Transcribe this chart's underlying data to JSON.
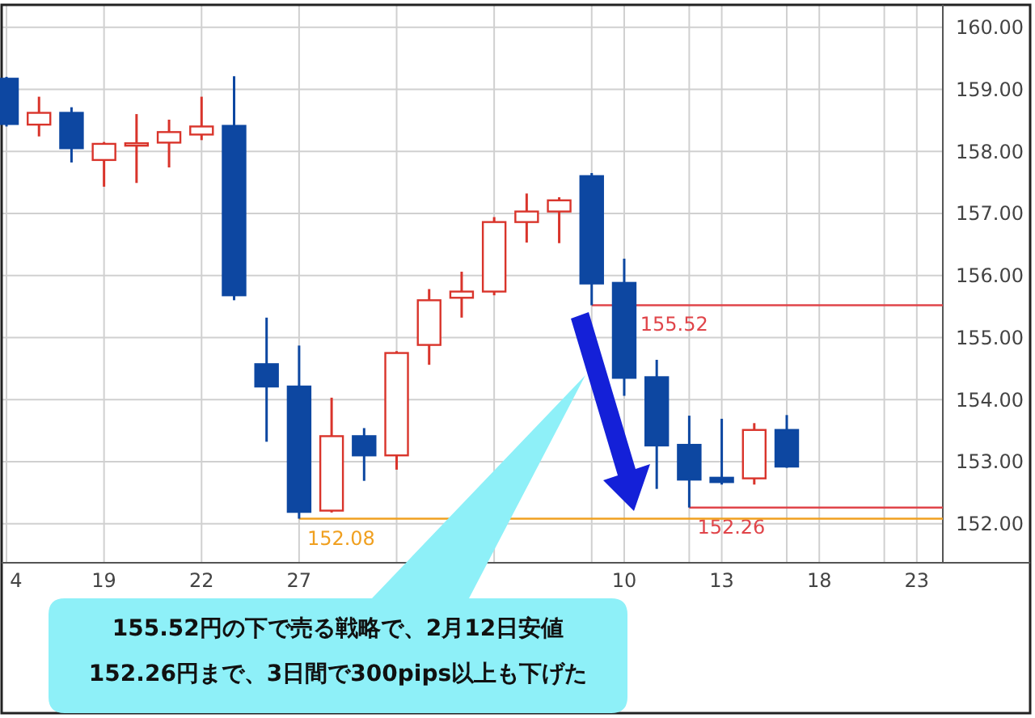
{
  "chart_data": {
    "type": "candlestick",
    "categories": [
      "4",
      null,
      null,
      "19",
      null,
      null,
      "22",
      null,
      null,
      "27",
      null,
      null,
      null,
      null,
      null,
      null,
      null,
      null,
      null,
      "10",
      null,
      null,
      "13",
      null,
      null,
      "18",
      null,
      null,
      "23"
    ],
    "ohlc": [
      [
        159.17,
        159.2,
        158.4,
        158.44
      ],
      [
        158.43,
        158.88,
        158.24,
        158.62
      ],
      [
        158.62,
        158.71,
        157.82,
        158.05
      ],
      [
        157.86,
        158.15,
        157.43,
        158.12
      ],
      [
        158.1,
        158.6,
        157.49,
        158.13
      ],
      [
        158.14,
        158.51,
        157.74,
        158.31
      ],
      [
        158.27,
        158.88,
        158.18,
        158.4
      ],
      [
        158.41,
        159.21,
        155.6,
        155.68
      ],
      [
        154.57,
        155.32,
        153.32,
        154.21
      ],
      [
        154.21,
        154.87,
        152.08,
        152.19
      ],
      [
        152.21,
        154.03,
        152.18,
        153.41
      ],
      [
        153.41,
        153.54,
        152.69,
        153.1
      ],
      [
        153.1,
        154.78,
        152.87,
        154.75
      ],
      [
        154.88,
        155.78,
        154.56,
        155.6
      ],
      [
        155.64,
        156.06,
        155.32,
        155.74
      ],
      [
        155.74,
        156.94,
        155.68,
        156.86
      ],
      [
        156.86,
        157.32,
        156.53,
        157.03
      ],
      [
        157.03,
        157.26,
        156.52,
        157.21
      ],
      [
        157.6,
        157.65,
        155.52,
        155.87
      ],
      [
        155.88,
        156.27,
        154.06,
        154.35
      ],
      [
        154.36,
        154.64,
        152.56,
        153.26
      ],
      [
        153.27,
        153.74,
        152.26,
        152.71
      ],
      [
        152.74,
        153.69,
        152.63,
        152.67
      ],
      [
        152.73,
        153.62,
        152.63,
        153.51
      ],
      [
        153.51,
        153.75,
        152.9,
        152.92
      ],
      null,
      null,
      null,
      null
    ],
    "ylim": [
      151.37,
      160.36
    ],
    "yticks": [
      {
        "value": 152,
        "label": "152.00"
      },
      {
        "value": 153,
        "label": "153.00"
      },
      {
        "value": 154,
        "label": "154.00"
      },
      {
        "value": 155,
        "label": "155.00"
      },
      {
        "value": 156,
        "label": "156.00"
      },
      {
        "value": 157,
        "label": "157.00"
      },
      {
        "value": 158,
        "label": "158.00"
      },
      {
        "value": 159,
        "label": "159.00"
      },
      {
        "value": 160,
        "label": "160.00"
      }
    ],
    "grid": true,
    "ref_lines": [
      {
        "axis": "y",
        "value": 155.52,
        "label": "155.52",
        "color": "#e0454a"
      },
      {
        "axis": "y",
        "value": 152.26,
        "label": "152.26",
        "color": "#e0454a"
      },
      {
        "axis": "y",
        "value": 152.08,
        "label": "152.08",
        "color": "#f0a020"
      }
    ],
    "annotations": [
      "155.52円の下で売る戦略で、2月12日安値",
      "152.26円まで、3日間で300pips以上も下げた"
    ]
  }
}
